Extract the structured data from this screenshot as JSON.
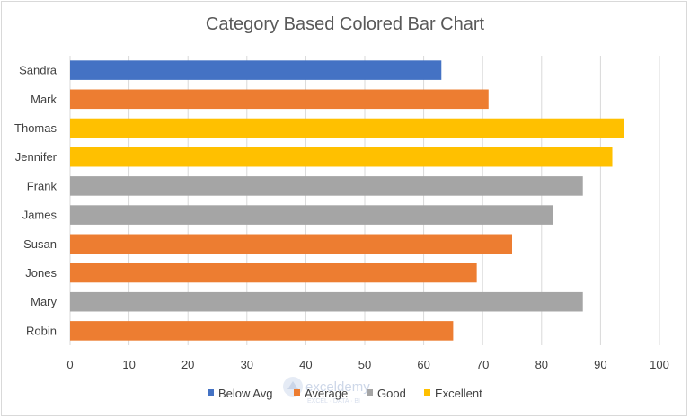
{
  "chart_data": {
    "type": "bar",
    "orientation": "horizontal",
    "title": "Category Based Colored Bar Chart",
    "xlabel": "",
    "ylabel": "",
    "xlim": [
      0,
      100
    ],
    "x_ticks": [
      0,
      10,
      20,
      30,
      40,
      50,
      60,
      70,
      80,
      90,
      100
    ],
    "grid": "vertical",
    "legend_position": "bottom",
    "categories": [
      "Sandra",
      "Mark",
      "Thomas",
      "Jennifer",
      "Frank",
      "James",
      "Susan",
      "Jones",
      "Mary",
      "Robin"
    ],
    "values": [
      63,
      71,
      94,
      92,
      87,
      82,
      75,
      69,
      87,
      65
    ],
    "bar_categories": [
      "Below Avg",
      "Average",
      "Excellent",
      "Excellent",
      "Good",
      "Good",
      "Average",
      "Average",
      "Good",
      "Average"
    ],
    "legend": [
      {
        "name": "Below Avg",
        "color": "#4472c4"
      },
      {
        "name": "Average",
        "color": "#ed7d31"
      },
      {
        "name": "Good",
        "color": "#a5a5a5"
      },
      {
        "name": "Excellent",
        "color": "#ffc000"
      }
    ]
  },
  "watermark": {
    "brand": "exceldemy",
    "tagline": "EXCEL · DATA · BI"
  }
}
